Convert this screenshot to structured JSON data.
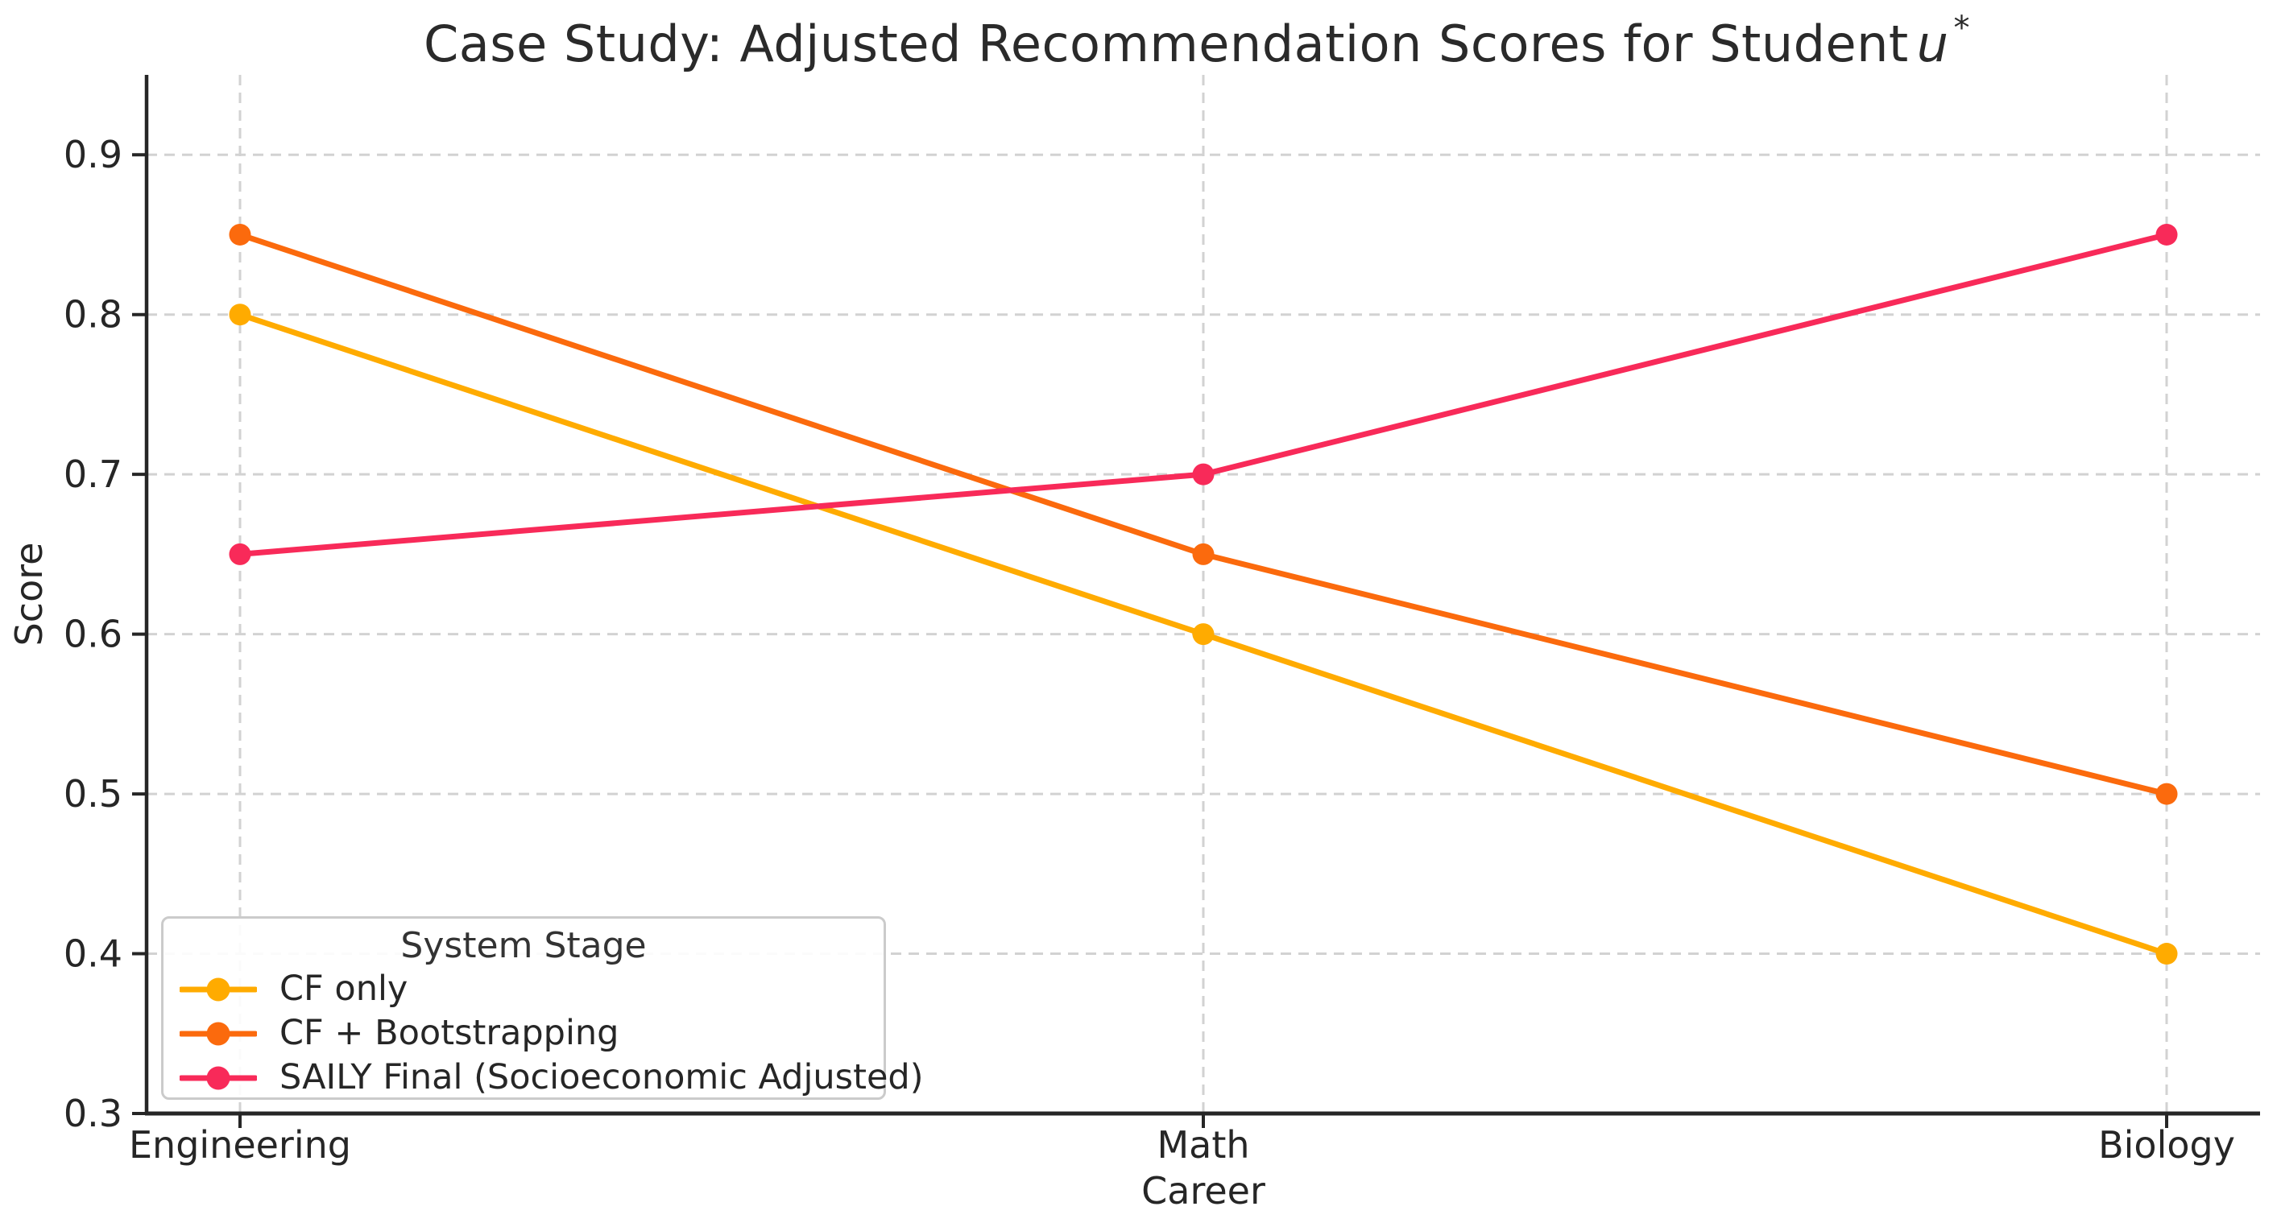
{
  "title": {
    "prefix": "Case Study: Adjusted Recommendation Scores for Student",
    "variable": "u",
    "superscript": "*"
  },
  "chart_data": {
    "type": "line",
    "title": "Case Study: Adjusted Recommendation Scores for Student u*",
    "categories": [
      "Engineering",
      "Math",
      "Biology"
    ],
    "series": [
      {
        "name": "CF only",
        "color": "#FFAB00",
        "values": [
          0.8,
          0.6,
          0.4
        ]
      },
      {
        "name": "CF + Bootstrapping",
        "color": "#FB6A0D",
        "values": [
          0.85,
          0.65,
          0.5
        ]
      },
      {
        "name": "SAILY Final (Socioeconomic Adjusted)",
        "color": "#F82A59",
        "values": [
          0.65,
          0.7,
          0.85
        ]
      }
    ],
    "xlabel": "Career",
    "ylabel": "Score",
    "ylim": [
      0.3,
      0.95
    ],
    "yticks": [
      0.3,
      0.4,
      0.5,
      0.6,
      0.7,
      0.8,
      0.9
    ],
    "ytick_labels": [
      "0.3",
      "0.4",
      "0.5",
      "0.6",
      "0.7",
      "0.8",
      "0.9"
    ],
    "grid": "dashed-both-axes",
    "legend": {
      "title": "System Stage",
      "position": "lower left"
    },
    "style": {
      "grid_color": "#d2d2d2",
      "spine_color": "#262626",
      "text_color": "#262626",
      "background": "#ffffff"
    }
  }
}
